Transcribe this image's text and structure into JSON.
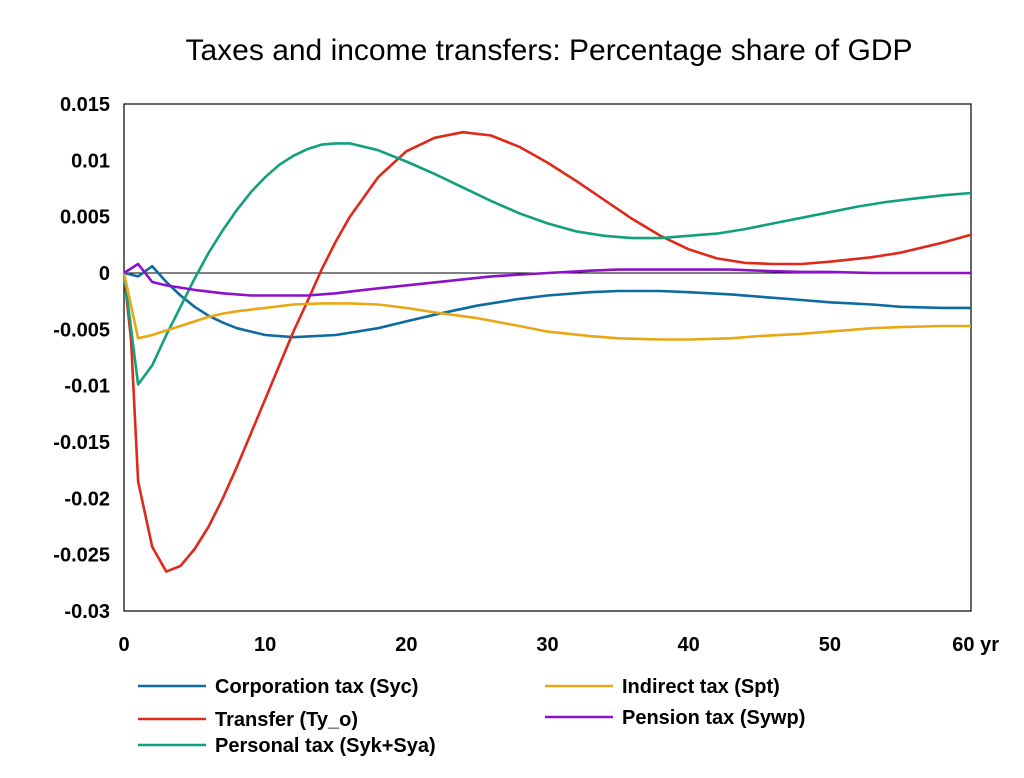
{
  "chart_data": {
    "type": "line",
    "title": "Taxes and income transfers: Percentage share of GDP",
    "xlabel": "",
    "ylabel": "",
    "x_unit_label": "yr",
    "xlim": [
      0,
      60
    ],
    "ylim": [
      -0.03,
      0.015
    ],
    "xticks": [
      0,
      10,
      20,
      30,
      40,
      50,
      60
    ],
    "xtick_labels": [
      "0",
      "10",
      "20",
      "30",
      "40",
      "50",
      "60 yr"
    ],
    "yticks": [
      0.015,
      0.01,
      0.005,
      0,
      -0.005,
      -0.01,
      -0.015,
      -0.02,
      -0.025,
      -0.03
    ],
    "ytick_labels": [
      "0.015",
      "0.01",
      "0.005",
      "0",
      "-0.005",
      "-0.01",
      "-0.015",
      "-0.02",
      "-0.025",
      "-0.03"
    ],
    "grid": false,
    "zero_line": true,
    "legend_position": "bottom",
    "series": [
      {
        "name": "Corporation tax (Syc)",
        "color": "#0e6ba0",
        "points": [
          [
            0,
            0
          ],
          [
            1,
            -0.0003
          ],
          [
            2,
            0.0006
          ],
          [
            3,
            -0.0008
          ],
          [
            4,
            -0.002
          ],
          [
            5,
            -0.003
          ],
          [
            6,
            -0.0038
          ],
          [
            7,
            -0.0044
          ],
          [
            8,
            -0.0049
          ],
          [
            10,
            -0.0055
          ],
          [
            12,
            -0.0057
          ],
          [
            15,
            -0.0055
          ],
          [
            18,
            -0.0049
          ],
          [
            20,
            -0.0043
          ],
          [
            22,
            -0.0037
          ],
          [
            25,
            -0.0029
          ],
          [
            28,
            -0.0023
          ],
          [
            30,
            -0.002
          ],
          [
            33,
            -0.0017
          ],
          [
            35,
            -0.0016
          ],
          [
            38,
            -0.0016
          ],
          [
            40,
            -0.0017
          ],
          [
            43,
            -0.0019
          ],
          [
            45,
            -0.0021
          ],
          [
            48,
            -0.0024
          ],
          [
            50,
            -0.0026
          ],
          [
            53,
            -0.0028
          ],
          [
            55,
            -0.003
          ],
          [
            58,
            -0.0031
          ],
          [
            60,
            -0.0031
          ]
        ]
      },
      {
        "name": "Transfer (Ty_o)",
        "color": "#dd2a1b",
        "points": [
          [
            0,
            0
          ],
          [
            0.5,
            -0.006
          ],
          [
            1,
            -0.0185
          ],
          [
            2,
            -0.0243
          ],
          [
            3,
            -0.0265
          ],
          [
            4,
            -0.026
          ],
          [
            5,
            -0.0245
          ],
          [
            6,
            -0.0225
          ],
          [
            7,
            -0.02
          ],
          [
            8,
            -0.0172
          ],
          [
            9,
            -0.0142
          ],
          [
            10,
            -0.0112
          ],
          [
            11,
            -0.0082
          ],
          [
            12,
            -0.0052
          ],
          [
            13,
            -0.0025
          ],
          [
            14,
            0.0003
          ],
          [
            15,
            0.0028
          ],
          [
            16,
            0.005
          ],
          [
            18,
            0.0085
          ],
          [
            20,
            0.0108
          ],
          [
            22,
            0.012
          ],
          [
            24,
            0.0125
          ],
          [
            26,
            0.0122
          ],
          [
            28,
            0.0112
          ],
          [
            30,
            0.0098
          ],
          [
            32,
            0.0082
          ],
          [
            34,
            0.0065
          ],
          [
            36,
            0.0048
          ],
          [
            38,
            0.0033
          ],
          [
            40,
            0.0021
          ],
          [
            42,
            0.0013
          ],
          [
            44,
            0.0009
          ],
          [
            46,
            0.0008
          ],
          [
            48,
            0.0008
          ],
          [
            50,
            0.001
          ],
          [
            53,
            0.0014
          ],
          [
            55,
            0.0018
          ],
          [
            58,
            0.0027
          ],
          [
            60,
            0.0034
          ]
        ]
      },
      {
        "name": "Personal tax (Syk+Sya)",
        "color": "#12a07a",
        "points": [
          [
            0,
            0
          ],
          [
            1,
            -0.0099
          ],
          [
            2,
            -0.0082
          ],
          [
            3,
            -0.0055
          ],
          [
            4,
            -0.003
          ],
          [
            5,
            -0.0005
          ],
          [
            6,
            0.0018
          ],
          [
            7,
            0.0038
          ],
          [
            8,
            0.0056
          ],
          [
            9,
            0.0072
          ],
          [
            10,
            0.0085
          ],
          [
            11,
            0.0096
          ],
          [
            12,
            0.0104
          ],
          [
            13,
            0.011
          ],
          [
            14,
            0.0114
          ],
          [
            15,
            0.0115
          ],
          [
            16,
            0.0115
          ],
          [
            18,
            0.0109
          ],
          [
            20,
            0.0099
          ],
          [
            22,
            0.0088
          ],
          [
            24,
            0.0076
          ],
          [
            26,
            0.0064
          ],
          [
            28,
            0.0053
          ],
          [
            30,
            0.0044
          ],
          [
            32,
            0.0037
          ],
          [
            34,
            0.0033
          ],
          [
            36,
            0.0031
          ],
          [
            38,
            0.0031
          ],
          [
            40,
            0.0033
          ],
          [
            42,
            0.0035
          ],
          [
            44,
            0.0039
          ],
          [
            46,
            0.0044
          ],
          [
            48,
            0.0049
          ],
          [
            50,
            0.0054
          ],
          [
            52,
            0.0059
          ],
          [
            54,
            0.0063
          ],
          [
            56,
            0.0066
          ],
          [
            58,
            0.0069
          ],
          [
            60,
            0.0071
          ]
        ]
      },
      {
        "name": "Indirect tax (Spt)",
        "color": "#e8a815",
        "points": [
          [
            0,
            0
          ],
          [
            1,
            -0.0058
          ],
          [
            2,
            -0.0055
          ],
          [
            3,
            -0.0051
          ],
          [
            4,
            -0.0047
          ],
          [
            5,
            -0.0043
          ],
          [
            6,
            -0.0039
          ],
          [
            7,
            -0.0036
          ],
          [
            8,
            -0.0034
          ],
          [
            10,
            -0.0031
          ],
          [
            12,
            -0.0028
          ],
          [
            14,
            -0.0027
          ],
          [
            16,
            -0.0027
          ],
          [
            18,
            -0.0028
          ],
          [
            20,
            -0.0031
          ],
          [
            22,
            -0.0035
          ],
          [
            25,
            -0.004
          ],
          [
            28,
            -0.0047
          ],
          [
            30,
            -0.0052
          ],
          [
            33,
            -0.0056
          ],
          [
            35,
            -0.0058
          ],
          [
            38,
            -0.0059
          ],
          [
            40,
            -0.0059
          ],
          [
            43,
            -0.0058
          ],
          [
            45,
            -0.0056
          ],
          [
            48,
            -0.0054
          ],
          [
            50,
            -0.0052
          ],
          [
            53,
            -0.0049
          ],
          [
            55,
            -0.0048
          ],
          [
            58,
            -0.0047
          ],
          [
            60,
            -0.0047
          ]
        ]
      },
      {
        "name": "Pension tax (Sywp)",
        "color": "#8b12c6",
        "points": [
          [
            0,
            0
          ],
          [
            1,
            0.0008
          ],
          [
            2,
            -0.0008
          ],
          [
            3,
            -0.0011
          ],
          [
            5,
            -0.0015
          ],
          [
            7,
            -0.0018
          ],
          [
            9,
            -0.002
          ],
          [
            11,
            -0.002
          ],
          [
            13,
            -0.002
          ],
          [
            15,
            -0.0018
          ],
          [
            17,
            -0.0015
          ],
          [
            20,
            -0.0011
          ],
          [
            23,
            -0.0007
          ],
          [
            26,
            -0.0003
          ],
          [
            30,
            0
          ],
          [
            33,
            0.0002
          ],
          [
            35,
            0.0003
          ],
          [
            38,
            0.0003
          ],
          [
            40,
            0.0003
          ],
          [
            43,
            0.0003
          ],
          [
            45,
            0.0002
          ],
          [
            48,
            0.0001
          ],
          [
            50,
            0.0001
          ],
          [
            53,
            0
          ],
          [
            55,
            0
          ],
          [
            58,
            0
          ],
          [
            60,
            0
          ]
        ]
      }
    ]
  }
}
